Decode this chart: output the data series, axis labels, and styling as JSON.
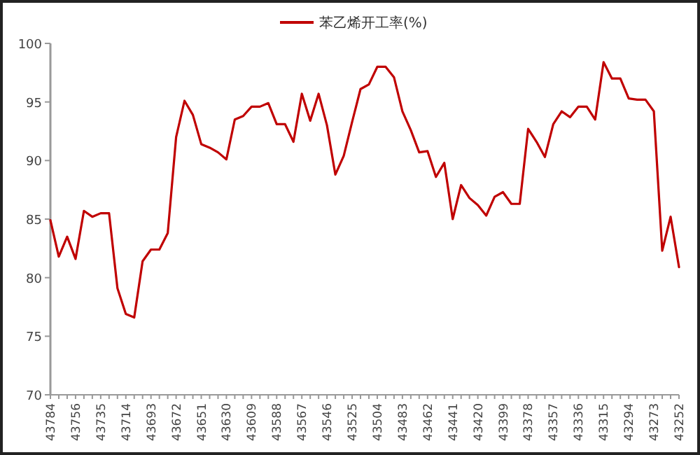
{
  "chart_data": {
    "type": "line",
    "legend": "top",
    "ylim": [
      70,
      100
    ],
    "yticks": [
      70,
      75,
      80,
      85,
      90,
      95,
      100
    ],
    "grid": false,
    "marker": "none",
    "line_style": "solid",
    "categories": [
      "43784",
      null,
      null,
      "43756",
      null,
      null,
      "43735",
      null,
      null,
      "43714",
      null,
      null,
      "43693",
      null,
      null,
      "43672",
      null,
      null,
      "43651",
      null,
      null,
      "43630",
      null,
      null,
      "43609",
      null,
      null,
      "43588",
      null,
      null,
      "43567",
      null,
      null,
      "43546",
      null,
      null,
      "43525",
      null,
      null,
      "43504",
      null,
      null,
      "43483",
      null,
      null,
      "43462",
      null,
      null,
      "43441",
      null,
      null,
      "43420",
      null,
      null,
      "43399",
      null,
      null,
      "43378",
      null,
      null,
      "43357",
      null,
      null,
      "43336",
      null,
      null,
      "43315",
      null,
      null,
      "43294",
      null,
      null,
      "43273",
      null,
      null,
      "43252"
    ],
    "series": [
      {
        "name": "苯乙烯开工率(%)",
        "color": "#c00000",
        "values": [
          84.9,
          81.8,
          83.5,
          81.6,
          85.7,
          85.2,
          85.5,
          85.5,
          79.1,
          76.9,
          76.6,
          81.4,
          82.4,
          82.4,
          83.8,
          92.0,
          95.1,
          93.9,
          91.4,
          91.1,
          90.7,
          90.1,
          93.5,
          93.8,
          94.6,
          94.6,
          94.9,
          93.1,
          93.1,
          91.6,
          95.7,
          93.4,
          95.7,
          93.0,
          88.8,
          90.4,
          93.3,
          96.1,
          96.5,
          98.0,
          98.0,
          97.1,
          94.2,
          92.6,
          90.7,
          90.8,
          88.6,
          89.8,
          85.0,
          87.9,
          86.8,
          86.2,
          85.3,
          86.9,
          87.3,
          86.3,
          86.3,
          92.7,
          91.6,
          90.3,
          93.1,
          94.2,
          93.7,
          94.6,
          94.6,
          93.5,
          98.4,
          97.0,
          97.0,
          95.3,
          95.2,
          95.2,
          94.2,
          82.3,
          85.2,
          80.9
        ]
      }
    ]
  }
}
